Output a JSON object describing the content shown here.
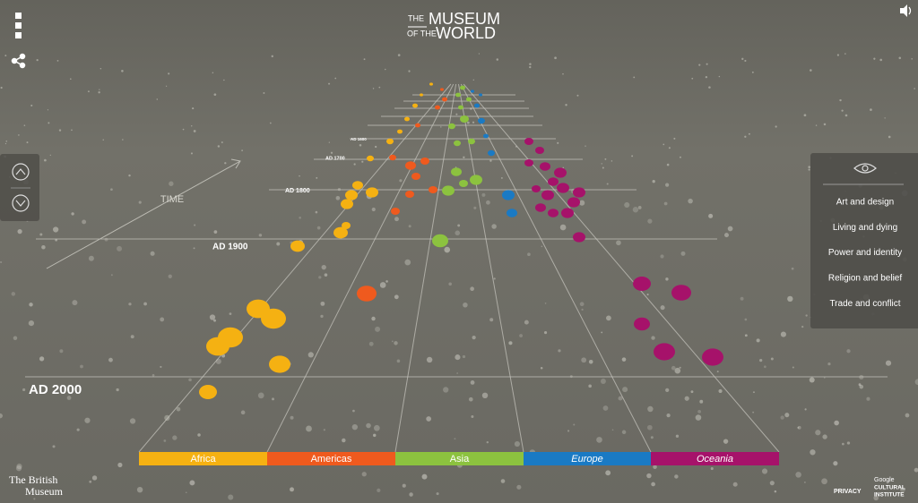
{
  "header": {
    "logo_small_top": "THE",
    "logo_large_top": "MUSEUM",
    "logo_small_bottom": "OF THE",
    "logo_large_bottom": "WORLD"
  },
  "axis": {
    "label": "TIME",
    "periods": [
      "AD 2000",
      "AD 1900",
      "AD 1800",
      "AD 1700",
      "AD 1600"
    ]
  },
  "regions": [
    {
      "name": "Africa",
      "color": "#f5b112"
    },
    {
      "name": "Americas",
      "color": "#ef5a1e"
    },
    {
      "name": "Asia",
      "color": "#8cc23f"
    },
    {
      "name": "Europe",
      "color": "#1a7ac4"
    },
    {
      "name": "Oceania",
      "color": "#a6126a"
    }
  ],
  "filters": [
    "Art and design",
    "Living and dying",
    "Power and identity",
    "Religion and belief",
    "Trade and conflict"
  ],
  "footer": {
    "museum_line1": "The British",
    "museum_line2": "Museum",
    "privacy": "PRIVACY",
    "partner_line1": "Google",
    "partner_line2": "CULTURAL",
    "partner_line3": "INSTITUTE"
  }
}
